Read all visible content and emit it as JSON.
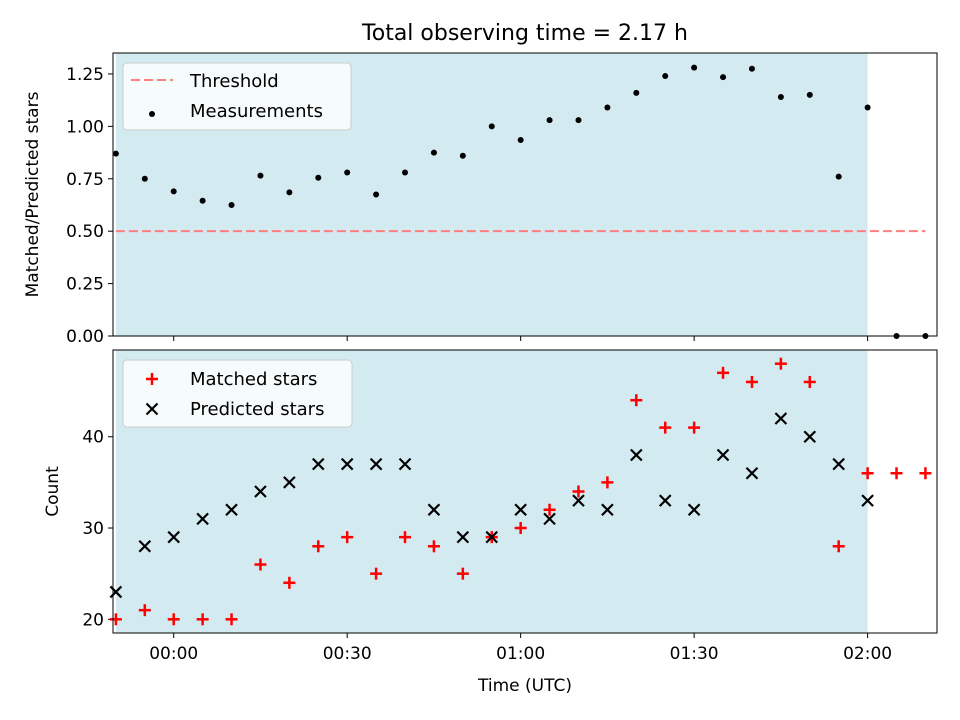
{
  "chart_data": [
    {
      "type": "line+scatter",
      "title": "Total observing time = 2.17 h",
      "xlabel": "",
      "ylabel": "Matched/Predicted stars",
      "x_type": "time",
      "xlim": [
        "23:49:30",
        "02:12:00"
      ],
      "ylim": [
        0,
        1.35
      ],
      "yticks": [
        "0.00",
        "0.25",
        "0.50",
        "0.75",
        "1.00",
        "1.25"
      ],
      "shaded_interval": [
        "23:50",
        "02:00"
      ],
      "shade_color": "#d3eaf0",
      "legend_location": "upper left",
      "series": [
        {
          "name": "Threshold",
          "style": "dashed-line",
          "color": "#ff7f7f",
          "x": [
            "23:50",
            "02:10"
          ],
          "y": [
            0.5,
            0.5
          ]
        },
        {
          "name": "Measurements",
          "style": "dot",
          "color": "#000000",
          "x": [
            "23:50",
            "23:55",
            "00:00",
            "00:05",
            "00:10",
            "00:15",
            "00:20",
            "00:25",
            "00:30",
            "00:35",
            "00:40",
            "00:45",
            "00:50",
            "00:55",
            "01:00",
            "01:05",
            "01:10",
            "01:15",
            "01:20",
            "01:25",
            "01:30",
            "01:35",
            "01:40",
            "01:45",
            "01:50",
            "01:55",
            "02:00",
            "02:05",
            "02:10"
          ],
          "y": [
            0.87,
            0.75,
            0.69,
            0.645,
            0.625,
            0.765,
            0.685,
            0.755,
            0.78,
            0.675,
            0.78,
            0.875,
            0.86,
            1.0,
            0.935,
            1.03,
            1.03,
            1.09,
            1.16,
            1.24,
            1.28,
            1.235,
            1.275,
            1.14,
            1.15,
            0.76,
            1.09,
            0.0,
            0.0
          ]
        }
      ]
    },
    {
      "type": "scatter",
      "title": "",
      "xlabel": "Time (UTC)",
      "ylabel": "Count",
      "x_type": "time",
      "xlim": [
        "23:49:30",
        "02:12:00"
      ],
      "ylim": [
        18.5,
        49.5
      ],
      "yticks": [
        "20",
        "30",
        "40"
      ],
      "xticks": [
        "00:00",
        "00:30",
        "01:00",
        "01:30",
        "02:00"
      ],
      "shaded_interval": [
        "23:50",
        "02:00"
      ],
      "shade_color": "#d3eaf0",
      "legend_location": "upper left",
      "series": [
        {
          "name": "Matched stars",
          "marker": "+",
          "color": "#ff0000",
          "x": [
            "23:50",
            "23:55",
            "00:00",
            "00:05",
            "00:10",
            "00:15",
            "00:20",
            "00:25",
            "00:30",
            "00:35",
            "00:40",
            "00:45",
            "00:50",
            "00:55",
            "01:00",
            "01:05",
            "01:10",
            "01:15",
            "01:20",
            "01:25",
            "01:30",
            "01:35",
            "01:40",
            "01:45",
            "01:50",
            "01:55",
            "02:00",
            "02:05",
            "02:10"
          ],
          "y": [
            20,
            21,
            20,
            20,
            20,
            26,
            24,
            28,
            29,
            25,
            29,
            28,
            25,
            29,
            30,
            32,
            34,
            35,
            44,
            41,
            41,
            47,
            46,
            48,
            46,
            28,
            36,
            36,
            36
          ]
        },
        {
          "name": "Predicted stars",
          "marker": "x",
          "color": "#000000",
          "x": [
            "23:50",
            "23:55",
            "00:00",
            "00:05",
            "00:10",
            "00:15",
            "00:20",
            "00:25",
            "00:30",
            "00:35",
            "00:40",
            "00:45",
            "00:50",
            "00:55",
            "01:00",
            "01:05",
            "01:10",
            "01:15",
            "01:20",
            "01:25",
            "01:30",
            "01:35",
            "01:40",
            "01:45",
            "01:50",
            "01:55",
            "02:00"
          ],
          "y": [
            23,
            28,
            29,
            31,
            32,
            34,
            35,
            37,
            37,
            37,
            37,
            32,
            29,
            29,
            32,
            31,
            33,
            32,
            38,
            33,
            32,
            38,
            36,
            42,
            40,
            37,
            33
          ]
        }
      ]
    }
  ]
}
